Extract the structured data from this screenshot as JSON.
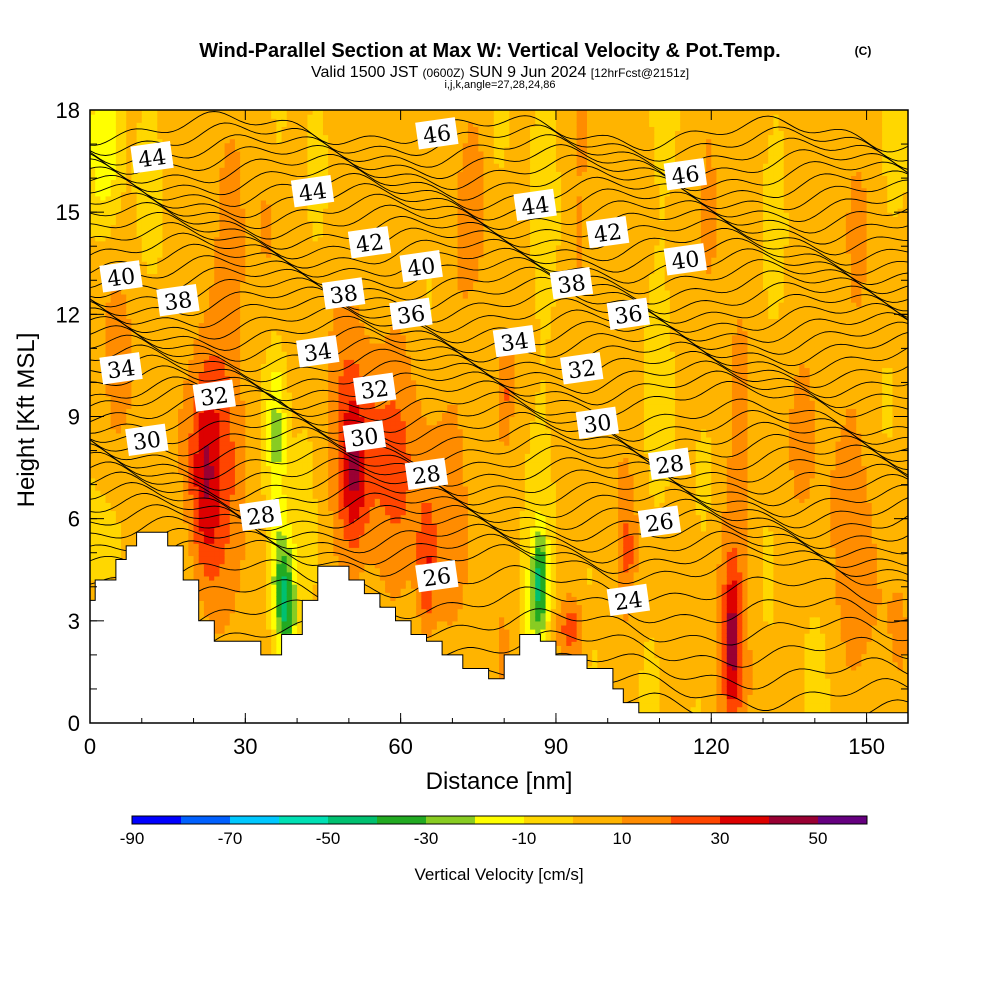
{
  "chart_data": {
    "type": "heatmap",
    "title": "Wind-Parallel Section at Max W: Vertical Velocity & Pot.Temp.",
    "title_suffix": "(C)",
    "subtitle": {
      "main_a": "Valid 1500 JST",
      "small_a": "(0600Z)",
      "main_b": "SUN 9 Jun 2024",
      "small_b": "[12hrFcst@2151z]"
    },
    "subtitle2": "i,j,k,angle=27,28,24,86",
    "xlabel": "Distance [nm]",
    "ylabel": "Height [Kft MSL]",
    "xlim": [
      0,
      158
    ],
    "ylim": [
      0,
      18
    ],
    "x_ticks": [
      0,
      30,
      60,
      90,
      120,
      150
    ],
    "y_ticks": [
      0,
      3,
      6,
      9,
      12,
      15,
      18
    ],
    "colorbar": {
      "label": "Vertical Velocity [cm/s]",
      "ticks": [
        -90,
        -70,
        -50,
        -30,
        -10,
        10,
        30,
        50
      ],
      "range": [
        -90,
        60
      ],
      "levels": [
        {
          "from": -90,
          "to": -80,
          "color": "#0000ff"
        },
        {
          "from": -80,
          "to": -70,
          "color": "#0060ff"
        },
        {
          "from": -70,
          "to": -60,
          "color": "#00c8ff"
        },
        {
          "from": -60,
          "to": -50,
          "color": "#00e0b4"
        },
        {
          "from": -50,
          "to": -40,
          "color": "#00c070"
        },
        {
          "from": -40,
          "to": -30,
          "color": "#22aa22"
        },
        {
          "from": -30,
          "to": -20,
          "color": "#88cc22"
        },
        {
          "from": -20,
          "to": -10,
          "color": "#ffff00"
        },
        {
          "from": -10,
          "to": 0,
          "color": "#ffd700"
        },
        {
          "from": 0,
          "to": 10,
          "color": "#ffb400"
        },
        {
          "from": 10,
          "to": 20,
          "color": "#ff8c00"
        },
        {
          "from": 20,
          "to": 30,
          "color": "#ff4500"
        },
        {
          "from": 30,
          "to": 40,
          "color": "#dd0000"
        },
        {
          "from": 40,
          "to": 50,
          "color": "#990033"
        },
        {
          "from": 50,
          "to": 60,
          "color": "#660080"
        }
      ]
    },
    "terrain_kft": [
      [
        0,
        3.6
      ],
      [
        1,
        3.6
      ],
      [
        1,
        4.2
      ],
      [
        5,
        4.2
      ],
      [
        5,
        4.8
      ],
      [
        7,
        4.8
      ],
      [
        7,
        5.2
      ],
      [
        9,
        5.2
      ],
      [
        9,
        5.6
      ],
      [
        15,
        5.6
      ],
      [
        15,
        5.2
      ],
      [
        18,
        5.2
      ],
      [
        18,
        4.2
      ],
      [
        21,
        4.2
      ],
      [
        21,
        3.0
      ],
      [
        24,
        3.0
      ],
      [
        24,
        2.4
      ],
      [
        33,
        2.4
      ],
      [
        33,
        2.0
      ],
      [
        37,
        2.0
      ],
      [
        37,
        2.6
      ],
      [
        41,
        2.6
      ],
      [
        41,
        3.6
      ],
      [
        44,
        3.6
      ],
      [
        44,
        4.6
      ],
      [
        50,
        4.6
      ],
      [
        50,
        4.2
      ],
      [
        53,
        4.2
      ],
      [
        53,
        3.8
      ],
      [
        56,
        3.8
      ],
      [
        56,
        3.4
      ],
      [
        59,
        3.4
      ],
      [
        59,
        3.0
      ],
      [
        62,
        3.0
      ],
      [
        62,
        2.6
      ],
      [
        65,
        2.6
      ],
      [
        65,
        2.4
      ],
      [
        68,
        2.4
      ],
      [
        68,
        2.0
      ],
      [
        72,
        2.0
      ],
      [
        72,
        1.6
      ],
      [
        77,
        1.6
      ],
      [
        77,
        1.3
      ],
      [
        80,
        1.3
      ],
      [
        80,
        2.0
      ],
      [
        83,
        2.0
      ],
      [
        83,
        2.6
      ],
      [
        87,
        2.6
      ],
      [
        87,
        2.4
      ],
      [
        90,
        2.4
      ],
      [
        90,
        2.0
      ],
      [
        96,
        2.0
      ],
      [
        96,
        1.6
      ],
      [
        101,
        1.6
      ],
      [
        101,
        1.0
      ],
      [
        103,
        1.0
      ],
      [
        103,
        0.6
      ],
      [
        106,
        0.6
      ],
      [
        106,
        0.3
      ],
      [
        158,
        0.3
      ]
    ],
    "potential_temperature_contours": [
      {
        "value": 24,
        "label_x": 104,
        "label_y": 3.6
      },
      {
        "value": 26,
        "label_x": 67,
        "label_y": 4.3
      },
      {
        "value": 26,
        "label_x": 110,
        "label_y": 5.9
      },
      {
        "value": 28,
        "label_x": 33,
        "label_y": 6.1
      },
      {
        "value": 28,
        "label_x": 65,
        "label_y": 7.3
      },
      {
        "value": 28,
        "label_x": 112,
        "label_y": 7.6
      },
      {
        "value": 30,
        "label_x": 11,
        "label_y": 8.3
      },
      {
        "value": 30,
        "label_x": 53,
        "label_y": 8.4
      },
      {
        "value": 30,
        "label_x": 98,
        "label_y": 8.8
      },
      {
        "value": 32,
        "label_x": 24,
        "label_y": 9.6
      },
      {
        "value": 32,
        "label_x": 55,
        "label_y": 9.8
      },
      {
        "value": 32,
        "label_x": 95,
        "label_y": 10.4
      },
      {
        "value": 34,
        "label_x": 6,
        "label_y": 10.4
      },
      {
        "value": 34,
        "label_x": 44,
        "label_y": 10.9
      },
      {
        "value": 34,
        "label_x": 82,
        "label_y": 11.2
      },
      {
        "value": 36,
        "label_x": 62,
        "label_y": 12.0
      },
      {
        "value": 36,
        "label_x": 104,
        "label_y": 12.0
      },
      {
        "value": 38,
        "label_x": 17,
        "label_y": 12.4
      },
      {
        "value": 38,
        "label_x": 49,
        "label_y": 12.6
      },
      {
        "value": 38,
        "label_x": 93,
        "label_y": 12.9
      },
      {
        "value": 40,
        "label_x": 6,
        "label_y": 13.1
      },
      {
        "value": 40,
        "label_x": 64,
        "label_y": 13.4
      },
      {
        "value": 40,
        "label_x": 115,
        "label_y": 13.6
      },
      {
        "value": 42,
        "label_x": 54,
        "label_y": 14.1
      },
      {
        "value": 42,
        "label_x": 100,
        "label_y": 14.4
      },
      {
        "value": 44,
        "label_x": 12,
        "label_y": 16.6
      },
      {
        "value": 44,
        "label_x": 43,
        "label_y": 15.6
      },
      {
        "value": 44,
        "label_x": 86,
        "label_y": 15.2
      },
      {
        "value": 46,
        "label_x": 67,
        "label_y": 17.3
      },
      {
        "value": 46,
        "label_x": 115,
        "label_y": 16.1
      }
    ],
    "vertical_velocity_features": [
      {
        "x": 22,
        "y": 7.2,
        "sx": 2.2,
        "sy": 2.4,
        "w": 28
      },
      {
        "x": 25,
        "y": 9.0,
        "sx": 4.0,
        "sy": 3.5,
        "w": 14
      },
      {
        "x": 36,
        "y": 8.5,
        "sx": 1.3,
        "sy": 1.6,
        "w": -26
      },
      {
        "x": 37,
        "y": 4.3,
        "sx": 1.8,
        "sy": 1.3,
        "w": -34
      },
      {
        "x": 38,
        "y": 3.1,
        "sx": 1.4,
        "sy": 1.0,
        "w": -28
      },
      {
        "x": 51,
        "y": 7.3,
        "sx": 1.8,
        "sy": 1.6,
        "w": 24
      },
      {
        "x": 54,
        "y": 8.0,
        "sx": 6.5,
        "sy": 2.6,
        "w": 16
      },
      {
        "x": 66,
        "y": 6.6,
        "sx": 5.0,
        "sy": 3.0,
        "w": 12
      },
      {
        "x": 65,
        "y": 4.3,
        "sx": 1.2,
        "sy": 1.3,
        "w": 22
      },
      {
        "x": 87,
        "y": 4.3,
        "sx": 1.0,
        "sy": 1.0,
        "w": -30
      },
      {
        "x": 86,
        "y": 3.2,
        "sx": 1.8,
        "sy": 1.4,
        "w": -18
      },
      {
        "x": 93,
        "y": 2.8,
        "sx": 2.0,
        "sy": 0.7,
        "w": 24
      },
      {
        "x": 124,
        "y": 2.4,
        "sx": 1.0,
        "sy": 1.4,
        "w": 26
      },
      {
        "x": 124,
        "y": 3.5,
        "sx": 2.5,
        "sy": 3.0,
        "w": 13
      },
      {
        "x": 3,
        "y": 17.0,
        "sx": 2.2,
        "sy": 1.8,
        "w": -22
      },
      {
        "x": 3,
        "y": 5.2,
        "sx": 2.0,
        "sy": 1.0,
        "w": -16
      },
      {
        "x": 34,
        "y": 15.3,
        "sx": 1.2,
        "sy": 2.6,
        "w": 10
      },
      {
        "x": 120,
        "y": 15.8,
        "sx": 1.6,
        "sy": 2.4,
        "w": 10
      },
      {
        "x": 75,
        "y": 16.0,
        "sx": 1.6,
        "sy": 2.0,
        "w": 8
      },
      {
        "x": 140,
        "y": 10.0,
        "sx": 5.0,
        "sy": 4.0,
        "w": 8
      },
      {
        "x": 104,
        "y": 5.0,
        "sx": 1.0,
        "sy": 1.2,
        "w": 14
      },
      {
        "x": 10,
        "y": 10.0,
        "sx": 4.0,
        "sy": 3.0,
        "w": 6
      },
      {
        "x": 80,
        "y": 9.6,
        "sx": 1.0,
        "sy": 1.0,
        "w": 16
      },
      {
        "x": 150,
        "y": 4.0,
        "sx": 6.0,
        "sy": 3.0,
        "w": 6
      },
      {
        "x": 95,
        "y": 13.5,
        "sx": 2.5,
        "sy": 2.0,
        "w": 6
      },
      {
        "x": 60,
        "y": 14.5,
        "sx": 3.0,
        "sy": 3.0,
        "w": 4
      }
    ]
  }
}
